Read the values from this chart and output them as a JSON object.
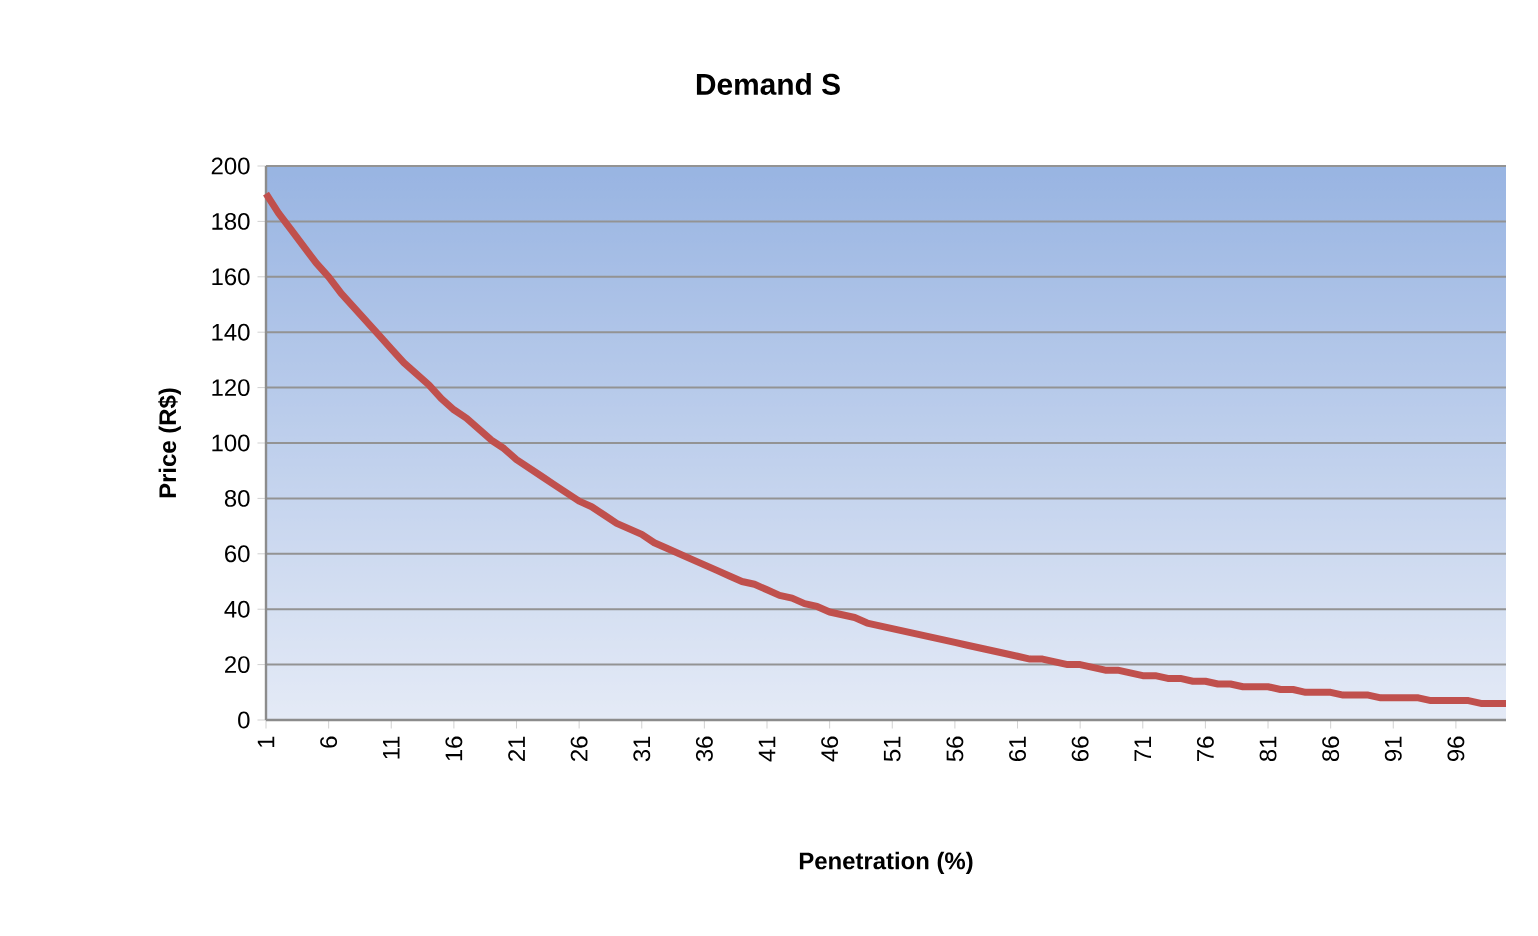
{
  "chart_data": {
    "type": "line",
    "title": "Demand S",
    "xlabel": "Penetration (%)",
    "ylabel": "Price (R$)",
    "categories": [
      "1",
      null,
      null,
      null,
      null,
      "6",
      null,
      null,
      null,
      null,
      "11",
      null,
      null,
      null,
      null,
      "16",
      null,
      null,
      null,
      null,
      "21",
      null,
      null,
      null,
      null,
      "26",
      null,
      null,
      null,
      null,
      "31",
      null,
      null,
      null,
      null,
      "36",
      null,
      null,
      null,
      null,
      "41",
      null,
      null,
      null,
      null,
      "46",
      null,
      null,
      null,
      null,
      "51",
      null,
      null,
      null,
      null,
      "56",
      null,
      null,
      null,
      null,
      "61",
      null,
      null,
      null,
      null,
      "66",
      null,
      null,
      null,
      null,
      "71",
      null,
      null,
      null,
      null,
      "76",
      null,
      null,
      null,
      null,
      "81",
      null,
      null,
      null,
      null,
      "86",
      null,
      null,
      null,
      null,
      "91",
      null,
      null,
      null,
      null,
      "96",
      null,
      null,
      null,
      null
    ],
    "values": [
      190,
      183,
      177,
      171,
      165,
      160,
      154,
      149,
      144,
      139,
      134,
      129,
      125,
      121,
      116,
      112,
      109,
      105,
      101,
      98,
      94,
      91,
      88,
      85,
      82,
      79,
      77,
      74,
      71,
      69,
      67,
      64,
      62,
      60,
      58,
      56,
      54,
      52,
      50,
      49,
      47,
      45,
      44,
      42,
      41,
      39,
      38,
      37,
      35,
      34,
      33,
      32,
      31,
      30,
      29,
      28,
      27,
      26,
      25,
      24,
      23,
      22,
      22,
      21,
      20,
      20,
      19,
      18,
      18,
      17,
      16,
      16,
      15,
      15,
      14,
      14,
      13,
      13,
      12,
      12,
      12,
      11,
      11,
      10,
      10,
      10,
      9,
      9,
      9,
      8,
      8,
      8,
      8,
      7,
      7,
      7,
      7,
      6,
      6,
      6
    ],
    "color": "#c0504d",
    "ylim": [
      0,
      200
    ],
    "yticks": [
      0,
      20,
      40,
      60,
      80,
      100,
      120,
      140,
      160,
      180,
      200
    ],
    "grid": "y",
    "marker": "none",
    "line_style": "solid"
  }
}
